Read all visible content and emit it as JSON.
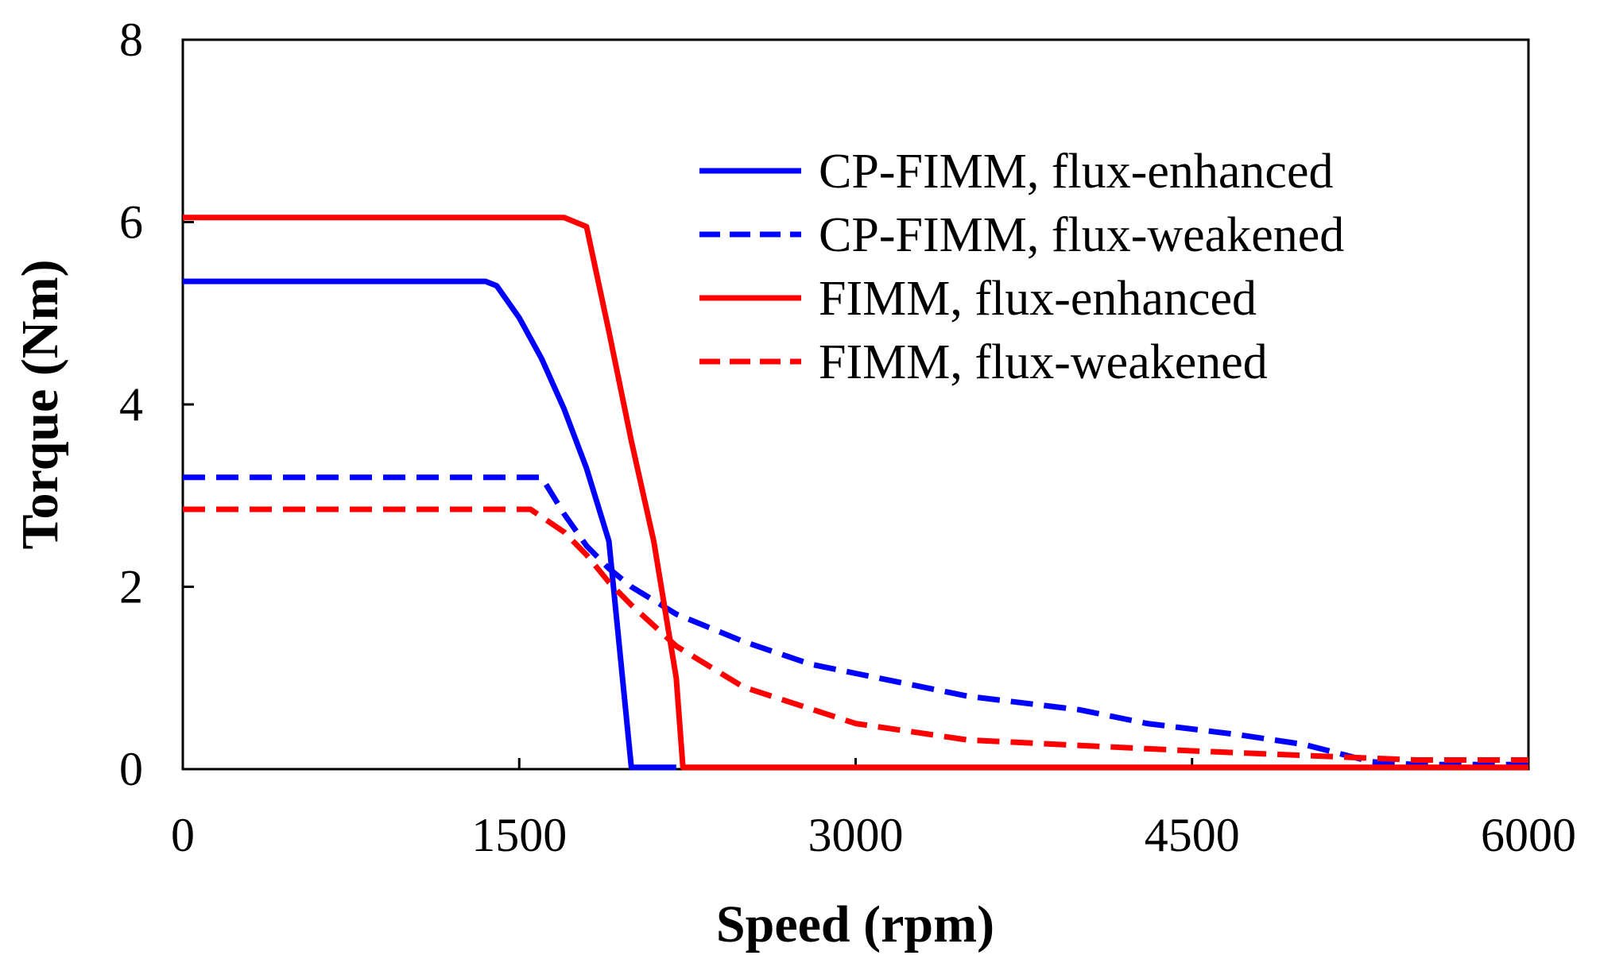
{
  "chart_data": {
    "type": "line",
    "title": "",
    "xlabel": "Speed (rpm)",
    "ylabel": "Torque (Nm)",
    "xlim": [
      0,
      6000
    ],
    "ylim": [
      0,
      8
    ],
    "xticks": [
      0,
      1500,
      3000,
      4500,
      6000
    ],
    "yticks": [
      0,
      2,
      4,
      6,
      8
    ],
    "xtick_labels": [
      "0",
      "1500",
      "3000",
      "4500",
      "6000"
    ],
    "ytick_labels": [
      "0",
      "2",
      "4",
      "6",
      "8"
    ],
    "grid": false,
    "legend_position": "top-right",
    "series": [
      {
        "name": "CP-FIMM, flux-enhanced",
        "color": "#0000ff",
        "style": "solid",
        "x": [
          0,
          1350,
          1400,
          1500,
          1600,
          1700,
          1800,
          1900,
          2000,
          2200
        ],
        "y": [
          5.35,
          5.35,
          5.3,
          4.95,
          4.5,
          3.95,
          3.3,
          2.5,
          0.02,
          0.02
        ]
      },
      {
        "name": "CP-FIMM, flux-weakened",
        "color": "#0000ff",
        "style": "dashed",
        "x": [
          0,
          1600,
          1700,
          1800,
          1900,
          2000,
          2200,
          2500,
          2800,
          3000,
          3500,
          4000,
          4300,
          4700,
          5000,
          5300,
          5500,
          6000
        ],
        "y": [
          3.2,
          3.2,
          2.8,
          2.45,
          2.2,
          2.0,
          1.7,
          1.4,
          1.15,
          1.05,
          0.8,
          0.65,
          0.5,
          0.38,
          0.27,
          0.08,
          0.05,
          0.05
        ]
      },
      {
        "name": "FIMM, flux-enhanced",
        "color": "#ff0000",
        "style": "solid",
        "x": [
          0,
          1700,
          1800,
          1900,
          2000,
          2100,
          2200,
          2230,
          6000
        ],
        "y": [
          6.05,
          6.05,
          5.95,
          4.8,
          3.6,
          2.5,
          1.0,
          0.02,
          0.02
        ]
      },
      {
        "name": "FIMM, flux-weakened",
        "color": "#ff0000",
        "style": "dashed",
        "x": [
          0,
          1550,
          1700,
          1800,
          1900,
          2000,
          2200,
          2500,
          3000,
          3500,
          4000,
          4500,
          5000,
          5500,
          6000
        ],
        "y": [
          2.85,
          2.85,
          2.6,
          2.35,
          2.05,
          1.8,
          1.35,
          0.9,
          0.5,
          0.32,
          0.26,
          0.2,
          0.15,
          0.1,
          0.1
        ]
      }
    ]
  }
}
